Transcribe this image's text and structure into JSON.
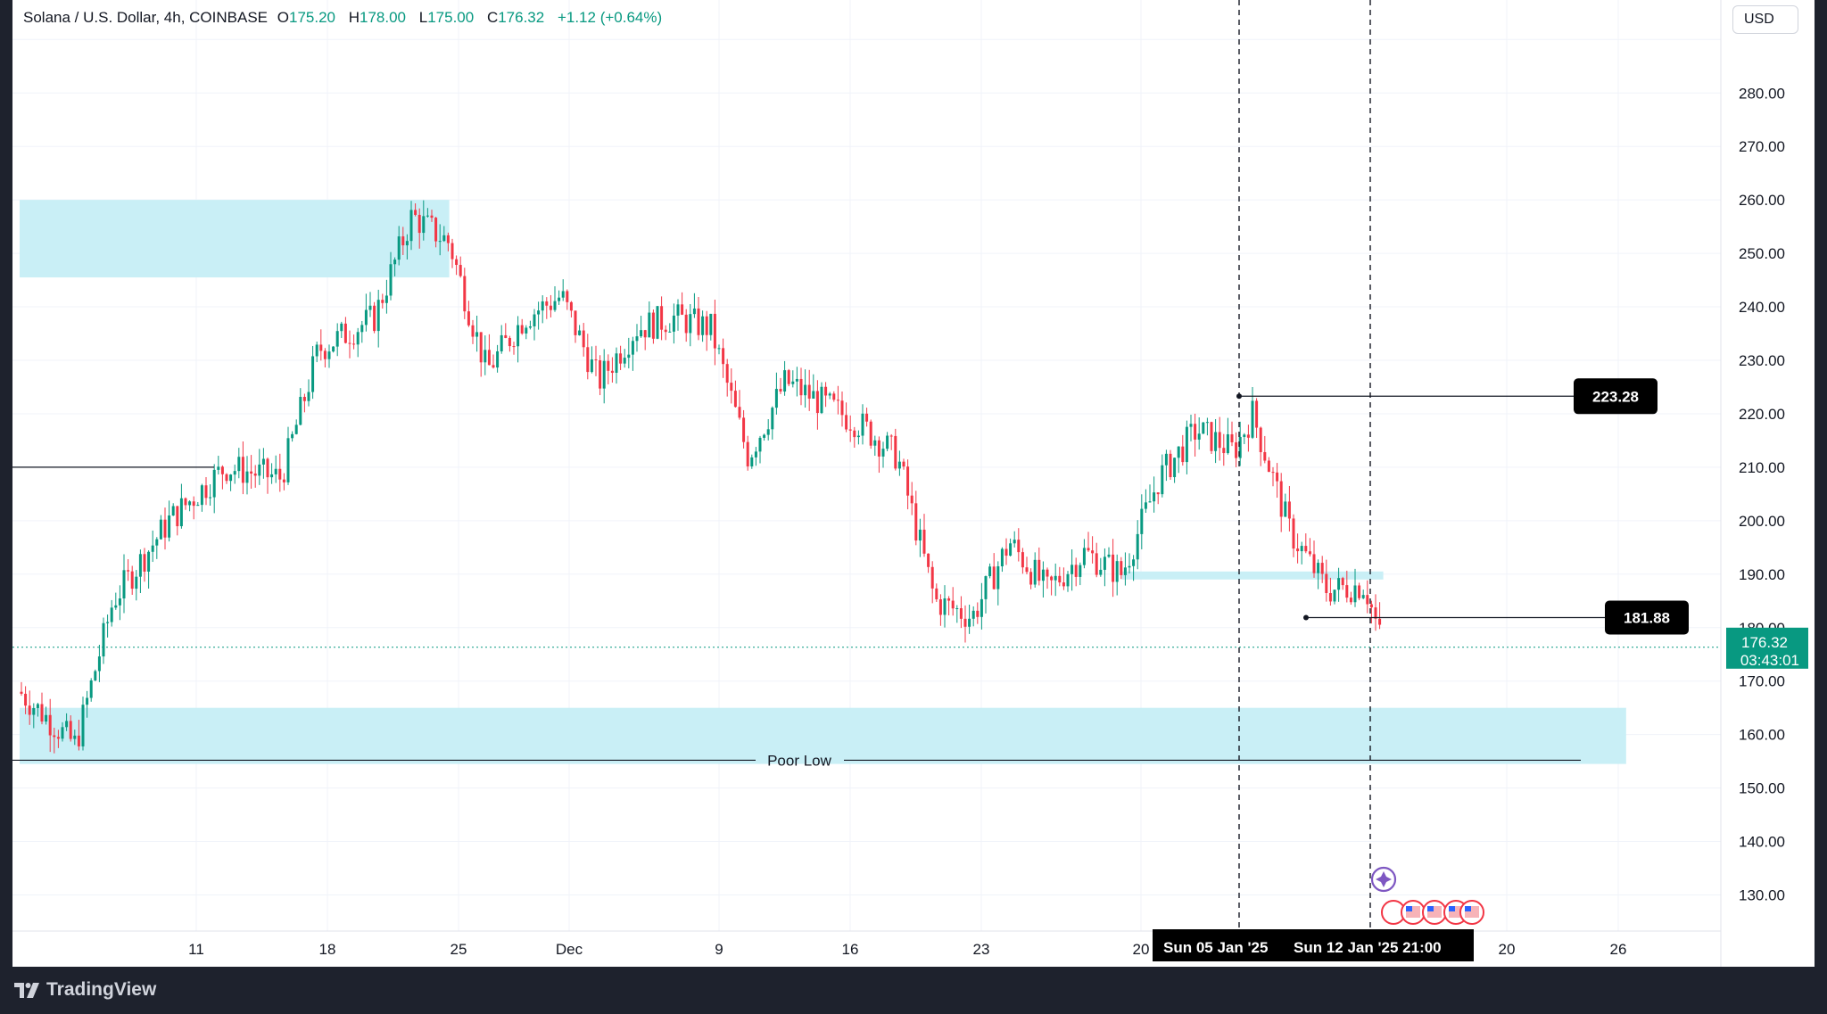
{
  "header": {
    "symbol": "Solana / U.S. Dollar, 4h, COINBASE",
    "o_label": "O",
    "o_value": "175.20",
    "h_label": "H",
    "h_value": "178.00",
    "l_label": "L",
    "l_value": "175.00",
    "c_label": "C",
    "c_value": "176.32",
    "change": "+1.12 (+0.64%)"
  },
  "currency": "USD",
  "brand": "TradingView",
  "colors": {
    "up": "#089981",
    "down": "#f23645",
    "zone": "#c9eff6",
    "price_tag": "#089981",
    "background": "#ffffff"
  },
  "chart_data": {
    "type": "candlestick",
    "title": "Solana / U.S. Dollar, 4h, COINBASE",
    "ylim": [
      122,
      290
    ],
    "y_ticks": [
      130,
      140,
      150,
      160,
      170,
      180,
      190,
      200,
      210,
      220,
      230,
      240,
      250,
      260,
      270,
      280
    ],
    "x_ticks": [
      "11",
      "18",
      "25",
      "Dec",
      "9",
      "16",
      "23",
      "20",
      "20",
      "26"
    ],
    "grid": true,
    "approx_close_path": [
      {
        "date": "2024-11-01",
        "close": 168
      },
      {
        "date": "2024-11-04",
        "close": 158
      },
      {
        "date": "2024-11-06",
        "close": 185
      },
      {
        "date": "2024-11-09",
        "close": 200
      },
      {
        "date": "2024-11-12",
        "close": 210
      },
      {
        "date": "2024-11-15",
        "close": 208
      },
      {
        "date": "2024-11-17",
        "close": 232
      },
      {
        "date": "2024-11-20",
        "close": 238
      },
      {
        "date": "2024-11-22",
        "close": 257
      },
      {
        "date": "2024-11-24",
        "close": 252
      },
      {
        "date": "2024-11-26",
        "close": 228
      },
      {
        "date": "2024-11-28",
        "close": 238
      },
      {
        "date": "2024-11-30",
        "close": 242
      },
      {
        "date": "2024-12-02",
        "close": 226
      },
      {
        "date": "2024-12-04",
        "close": 236
      },
      {
        "date": "2024-12-06",
        "close": 238
      },
      {
        "date": "2024-12-08",
        "close": 236
      },
      {
        "date": "2024-12-10",
        "close": 212
      },
      {
        "date": "2024-12-12",
        "close": 226
      },
      {
        "date": "2024-12-14",
        "close": 222
      },
      {
        "date": "2024-12-16",
        "close": 218
      },
      {
        "date": "2024-12-18",
        "close": 212
      },
      {
        "date": "2024-12-20",
        "close": 185
      },
      {
        "date": "2024-12-22",
        "close": 182
      },
      {
        "date": "2024-12-24",
        "close": 196
      },
      {
        "date": "2024-12-26",
        "close": 187
      },
      {
        "date": "2024-12-28",
        "close": 194
      },
      {
        "date": "2024-12-30",
        "close": 190
      },
      {
        "date": "2025-01-01",
        "close": 208
      },
      {
        "date": "2025-01-03",
        "close": 217
      },
      {
        "date": "2025-01-05",
        "close": 213
      },
      {
        "date": "2025-01-06",
        "close": 220
      },
      {
        "date": "2025-01-08",
        "close": 198
      },
      {
        "date": "2025-01-10",
        "close": 187
      },
      {
        "date": "2025-01-12",
        "close": 188
      },
      {
        "date": "2025-01-13",
        "close": 176.32
      }
    ],
    "zones": [
      {
        "from": "2024-11-01",
        "to": "2024-11-24",
        "low": 245.5,
        "high": 260
      },
      {
        "from": "2024-11-01",
        "to": "2025-01-26",
        "low": 154.5,
        "high": 165
      },
      {
        "from": "2024-12-30",
        "to": "2025-01-13",
        "low": 189,
        "high": 190.5
      }
    ],
    "levels": [
      {
        "value": 210,
        "label": ""
      },
      {
        "value": 155.2,
        "label": "Poor Low"
      },
      {
        "value": 223.28,
        "label": "223.28"
      },
      {
        "value": 181.88,
        "label": "181.88"
      }
    ],
    "vertical_markers": [
      "Sun 05 Jan '25",
      "Sun 12 Jan '25   21:00"
    ],
    "last_price": {
      "value": "176.32",
      "countdown": "03:43:01"
    }
  }
}
